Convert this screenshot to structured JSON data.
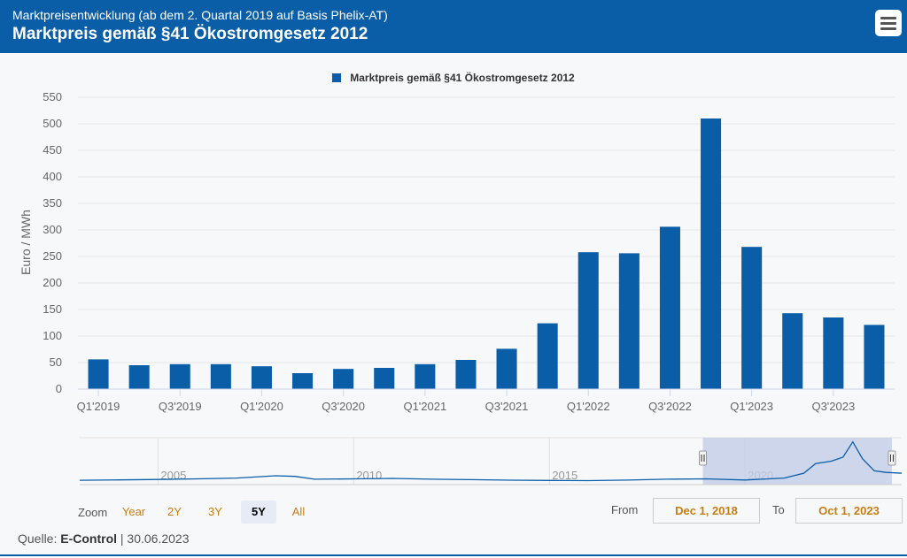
{
  "header": {
    "subtitle": "Marktpreisentwicklung (ab dem 2. Quartal 2019 auf Basis Phelix-AT)",
    "title": "Marktpreis gemäß §41 Ökostromgesetz 2012",
    "menu_icon": "hamburger-menu-icon"
  },
  "colors": {
    "brand": "#0a5ea8",
    "bar": "#0a5ea8",
    "zoom_accent": "#c77d12",
    "navigator_mask": "#c3cde8"
  },
  "chart_data": {
    "type": "bar",
    "legend": "Marktpreis gemäß §41 Ökostromgesetz 2012",
    "legend_position": "top-center",
    "ylabel": "Euro / MWh",
    "ylim": [
      0,
      550
    ],
    "y_ticks": [
      "0",
      "50",
      "100",
      "150",
      "200",
      "250",
      "300",
      "350",
      "400",
      "450",
      "500",
      "550"
    ],
    "grid": true,
    "categories": [
      "Q1'2019",
      "Q2'2019",
      "Q3'2019",
      "Q4'2019",
      "Q1'2020",
      "Q2'2020",
      "Q3'2020",
      "Q4'2020",
      "Q1'2021",
      "Q2'2021",
      "Q3'2021",
      "Q4'2021",
      "Q1'2022",
      "Q2'2022",
      "Q3'2022",
      "Q4'2022",
      "Q1'2023",
      "Q2'2023",
      "Q3'2023",
      "Q4'2023"
    ],
    "x_tick_labels": [
      "Q1'2019",
      "Q3'2019",
      "Q1'2020",
      "Q3'2020",
      "Q1'2021",
      "Q3'2021",
      "Q1'2022",
      "Q3'2022",
      "Q1'2023",
      "Q3'2023"
    ],
    "series": [
      {
        "name": "Marktpreis gemäß §41 Ökostromgesetz 2012",
        "values": [
          56,
          45,
          47,
          47,
          43,
          30,
          38,
          40,
          47,
          55,
          76,
          124,
          258,
          256,
          306,
          510,
          268,
          143,
          135,
          121
        ]
      }
    ],
    "navigator": {
      "year_labels": [
        "2005",
        "2010",
        "2015",
        "2020"
      ],
      "years": [
        2005,
        2010,
        2015,
        2020
      ],
      "range_start_year": 2003,
      "range_end_year": 2024,
      "selected_from": 2018.92,
      "selected_to": 2023.75,
      "history": [
        [
          2003,
          32
        ],
        [
          2004,
          36
        ],
        [
          2005,
          42
        ],
        [
          2006,
          50
        ],
        [
          2007,
          60
        ],
        [
          2008,
          88
        ],
        [
          2008.5,
          80
        ],
        [
          2009,
          45
        ],
        [
          2010,
          50
        ],
        [
          2011,
          55
        ],
        [
          2012,
          45
        ],
        [
          2013,
          40
        ],
        [
          2014,
          33
        ],
        [
          2015,
          30
        ],
        [
          2016,
          28
        ],
        [
          2017,
          34
        ],
        [
          2018,
          45
        ],
        [
          2019,
          50
        ],
        [
          2020,
          35
        ],
        [
          2021,
          60
        ],
        [
          2021.5,
          120
        ],
        [
          2021.8,
          240
        ],
        [
          2022.2,
          270
        ],
        [
          2022.5,
          320
        ],
        [
          2022.75,
          510
        ],
        [
          2023,
          300
        ],
        [
          2023.3,
          150
        ],
        [
          2023.6,
          130
        ],
        [
          2024,
          120
        ]
      ]
    }
  },
  "zoom": {
    "label": "Zoom",
    "buttons": [
      {
        "label": "Year",
        "active": false
      },
      {
        "label": "2Y",
        "active": false
      },
      {
        "label": "3Y",
        "active": false
      },
      {
        "label": "5Y",
        "active": true
      },
      {
        "label": "All",
        "active": false
      }
    ]
  },
  "range": {
    "from_label": "From",
    "from_value": "Dec 1, 2018",
    "to_label": "To",
    "to_value": "Oct 1, 2023"
  },
  "source": {
    "prefix": "Quelle: ",
    "name": "E-Control",
    "suffix": " | 30.06.2023"
  }
}
